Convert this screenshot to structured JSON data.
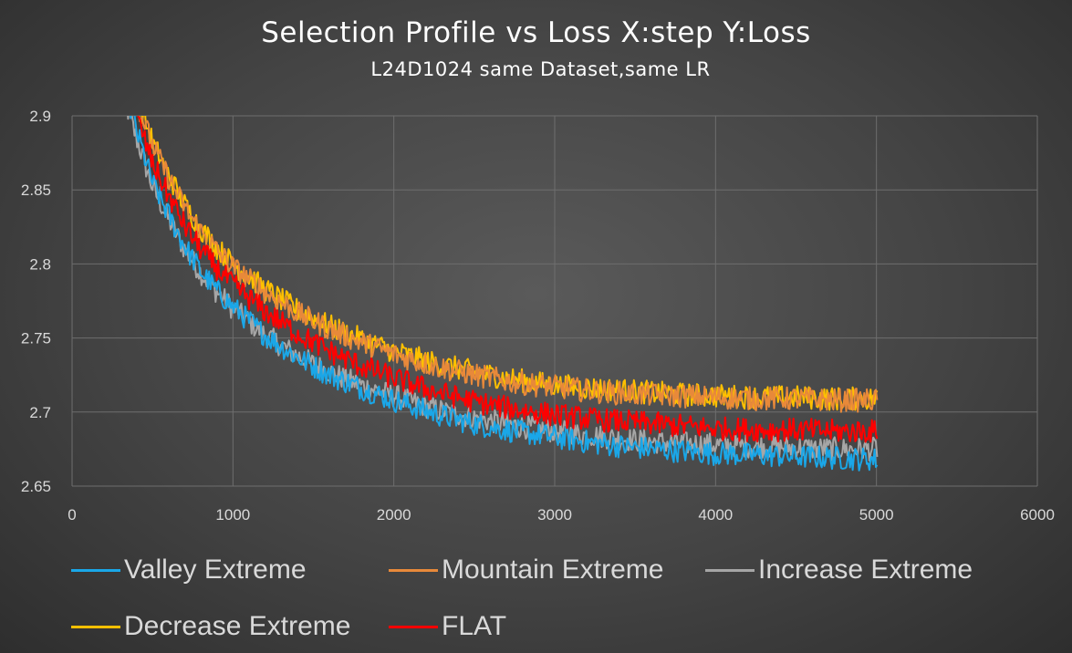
{
  "chart_data": {
    "type": "line",
    "title": "Selection Profile vs Loss X:step Y:Loss",
    "subtitle": "L24D1024 same Dataset,same LR",
    "xlabel": "",
    "ylabel": "",
    "xlim": [
      0,
      6000
    ],
    "ylim": [
      2.65,
      2.9
    ],
    "x_ticks": [
      "0",
      "1000",
      "2000",
      "3000",
      "4000",
      "5000",
      "6000"
    ],
    "y_ticks": [
      "2.65",
      "2.7",
      "2.75",
      "2.8",
      "2.85",
      "2.9"
    ],
    "grid": "vertical and horizontal",
    "legend_position": "bottom",
    "x": [
      300,
      400,
      500,
      600,
      700,
      800,
      900,
      1000,
      1200,
      1400,
      1600,
      1800,
      2000,
      2250,
      2500,
      2750,
      3000,
      3250,
      3500,
      3750,
      4000,
      4250,
      4500,
      4750,
      5000
    ],
    "series": [
      {
        "name": "Valley Extreme",
        "color": "#1aa7e8",
        "values": [
          2.93,
          2.89,
          2.855,
          2.833,
          2.812,
          2.795,
          2.782,
          2.771,
          2.752,
          2.737,
          2.725,
          2.716,
          2.708,
          2.699,
          2.692,
          2.687,
          2.683,
          2.679,
          2.676,
          2.674,
          2.672,
          2.671,
          2.67,
          2.669,
          2.668
        ]
      },
      {
        "name": "Mountain Extreme",
        "color": "#e8893a",
        "values": [
          2.95,
          2.91,
          2.88,
          2.858,
          2.838,
          2.822,
          2.809,
          2.798,
          2.781,
          2.767,
          2.756,
          2.747,
          2.739,
          2.731,
          2.725,
          2.72,
          2.717,
          2.714,
          2.712,
          2.711,
          2.71,
          2.709,
          2.709,
          2.708,
          2.708
        ]
      },
      {
        "name": "Increase Extreme",
        "color": "#a6a6a6",
        "values": [
          2.92,
          2.885,
          2.852,
          2.83,
          2.81,
          2.794,
          2.781,
          2.77,
          2.752,
          2.738,
          2.727,
          2.718,
          2.711,
          2.702,
          2.696,
          2.691,
          2.687,
          2.684,
          2.681,
          2.679,
          2.678,
          2.677,
          2.676,
          2.675,
          2.675
        ]
      },
      {
        "name": "Decrease Extreme",
        "color": "#ffc000",
        "values": [
          2.95,
          2.915,
          2.882,
          2.86,
          2.84,
          2.824,
          2.811,
          2.8,
          2.783,
          2.769,
          2.758,
          2.749,
          2.741,
          2.733,
          2.727,
          2.722,
          2.718,
          2.716,
          2.714,
          2.712,
          2.711,
          2.71,
          2.71,
          2.709,
          2.709
        ]
      },
      {
        "name": "FLAT",
        "color": "#ff0000",
        "values": [
          2.94,
          2.9,
          2.868,
          2.846,
          2.826,
          2.81,
          2.797,
          2.786,
          2.768,
          2.753,
          2.741,
          2.731,
          2.723,
          2.714,
          2.707,
          2.702,
          2.698,
          2.695,
          2.693,
          2.691,
          2.689,
          2.688,
          2.688,
          2.687,
          2.687
        ]
      }
    ]
  }
}
